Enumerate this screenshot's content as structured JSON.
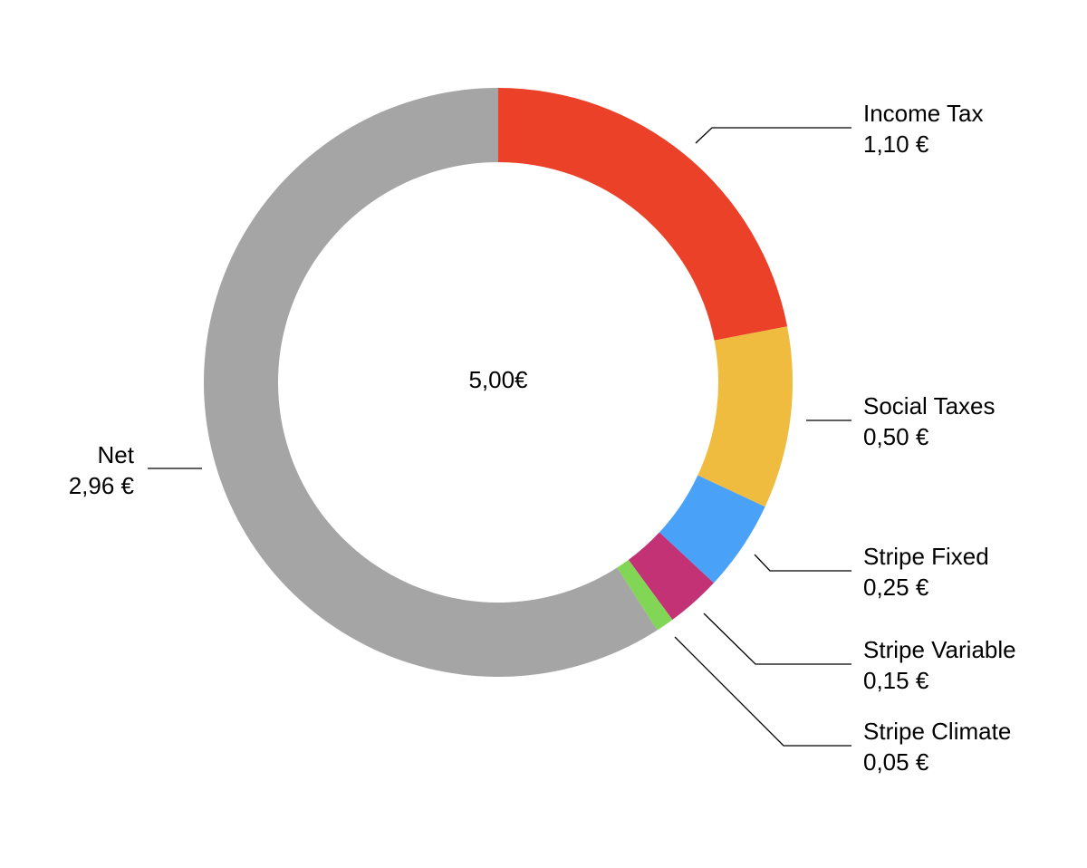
{
  "chart_data": {
    "type": "pie",
    "variant": "donut",
    "title": "",
    "center_label": "5,00€",
    "currency": "€",
    "categories": [
      "Income Tax",
      "Social Taxes",
      "Stripe Fixed",
      "Stripe Variable",
      "Stripe Climate",
      "Net"
    ],
    "values": [
      1.1,
      0.5,
      0.25,
      0.15,
      0.05,
      2.96
    ],
    "value_labels": [
      "1,10 €",
      "0,50 €",
      "0,25 €",
      "0,15 €",
      "0,05 €",
      "2,96 €"
    ],
    "colors": [
      "#EA4128",
      "#EFBC40",
      "#49A2F7",
      "#C23274",
      "#82D655",
      "#A5A5A5"
    ],
    "legend": "callout labels",
    "start_angle_deg": 0,
    "direction": "clockwise"
  },
  "labels": {
    "income_tax": {
      "name": "Income Tax",
      "value": "1,10 €"
    },
    "social_taxes": {
      "name": "Social Taxes",
      "value": "0,50 €"
    },
    "stripe_fixed": {
      "name": "Stripe Fixed",
      "value": "0,25 €"
    },
    "stripe_variable": {
      "name": "Stripe Variable",
      "value": "0,15 €"
    },
    "stripe_climate": {
      "name": "Stripe Climate",
      "value": "0,05 €"
    },
    "net": {
      "name": "Net",
      "value": "2,96 €"
    }
  }
}
